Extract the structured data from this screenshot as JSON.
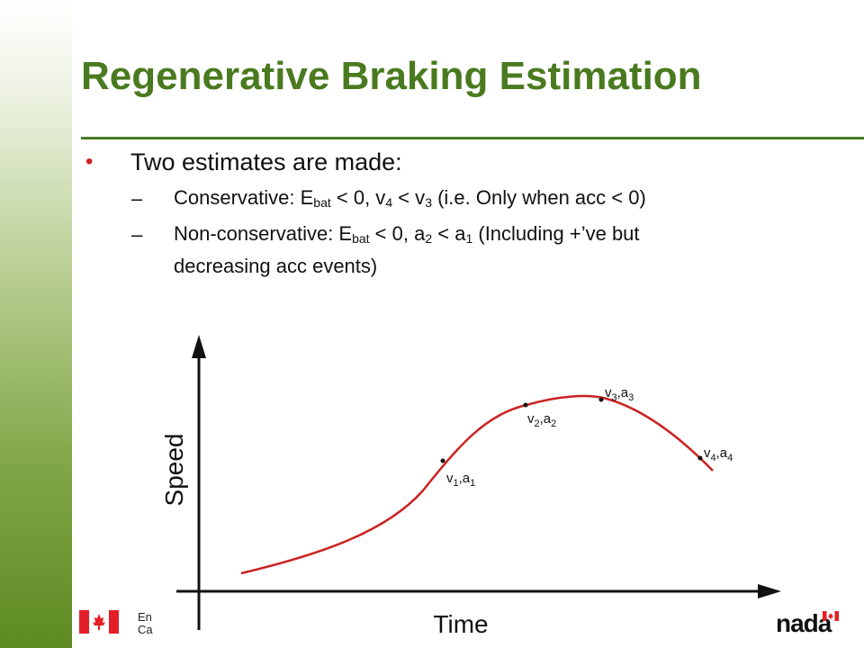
{
  "slide": {
    "title": "Regenerative Braking Estimation"
  },
  "bullets": {
    "main": "Two estimates are made:",
    "dash": "–",
    "conservative": {
      "a": "Conservative: E",
      "a_sub": "bat",
      "b": " < 0, v",
      "b_sub": "4",
      "c": " < v",
      "c_sub": "3",
      "d": " (i.e. Only when acc < 0)"
    },
    "nonconservative": {
      "a": "Non-conservative: E",
      "a_sub": "bat",
      "b": " < 0, a",
      "b_sub": "2",
      "c": " < a",
      "c_sub": "1",
      "d": " (Including +’ve but",
      "line2": "decreasing acc events)"
    }
  },
  "chart_data": {
    "type": "line",
    "xlabel": "Time",
    "ylabel": "Speed",
    "curve_color": "#cc2222",
    "axis_color": "#111111",
    "points": [
      {
        "name": "v",
        "sub": "1",
        "name2": "a",
        "sub2": "1"
      },
      {
        "name": "v",
        "sub": "2",
        "name2": "a",
        "sub2": "2"
      },
      {
        "name": "v",
        "sub": "3",
        "name2": "a",
        "sub2": "3"
      },
      {
        "name": "v",
        "sub": "4",
        "name2": "a",
        "sub2": "4"
      }
    ]
  },
  "footer": {
    "left_line1": "En",
    "left_line2": "Ca",
    "right_text": "nada",
    "flag_red": "#e41e26"
  }
}
